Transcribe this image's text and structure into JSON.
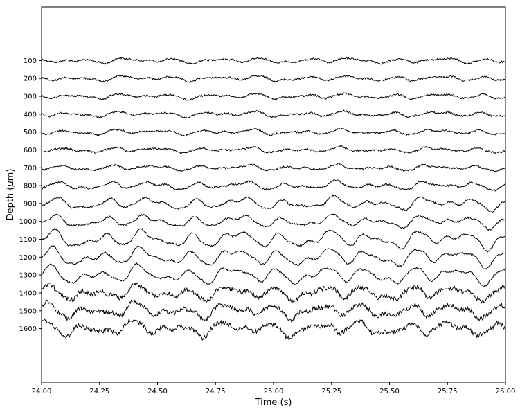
{
  "chart_data": {
    "type": "line",
    "title": "",
    "xlabel": "Time (s)",
    "ylabel_prefix": "Depth (",
    "ylabel_mu": "μ",
    "ylabel_suffix": "m)",
    "xlim": [
      24.0,
      26.0
    ],
    "xticks": [
      "24.00",
      "24.25",
      "24.50",
      "24.75",
      "25.00",
      "25.25",
      "25.50",
      "25.75",
      "26.00"
    ],
    "depths": [
      "100",
      "200",
      "300",
      "400",
      "500",
      "600",
      "700",
      "800",
      "900",
      "1000",
      "1100",
      "1200",
      "1300",
      "1400",
      "1500",
      "1600"
    ],
    "ylim": [
      1900,
      -200
    ],
    "grid": false,
    "line_color": "#000000"
  }
}
